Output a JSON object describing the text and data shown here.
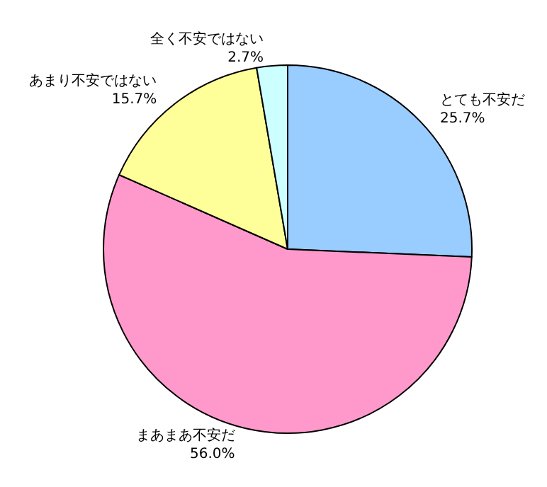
{
  "chart_data": {
    "type": "pie",
    "categories": [
      "とても不安だ",
      "まあまあ不安だ",
      "あまり不安ではない",
      "全く不安ではない"
    ],
    "values": [
      25.7,
      56.0,
      15.7,
      2.7
    ],
    "value_labels": [
      "25.7%",
      "56.0%",
      "15.7%",
      "2.7%"
    ],
    "colors": [
      "#99ccff",
      "#ff99cc",
      "#ffff99",
      "#ccffff"
    ],
    "legend": false
  }
}
